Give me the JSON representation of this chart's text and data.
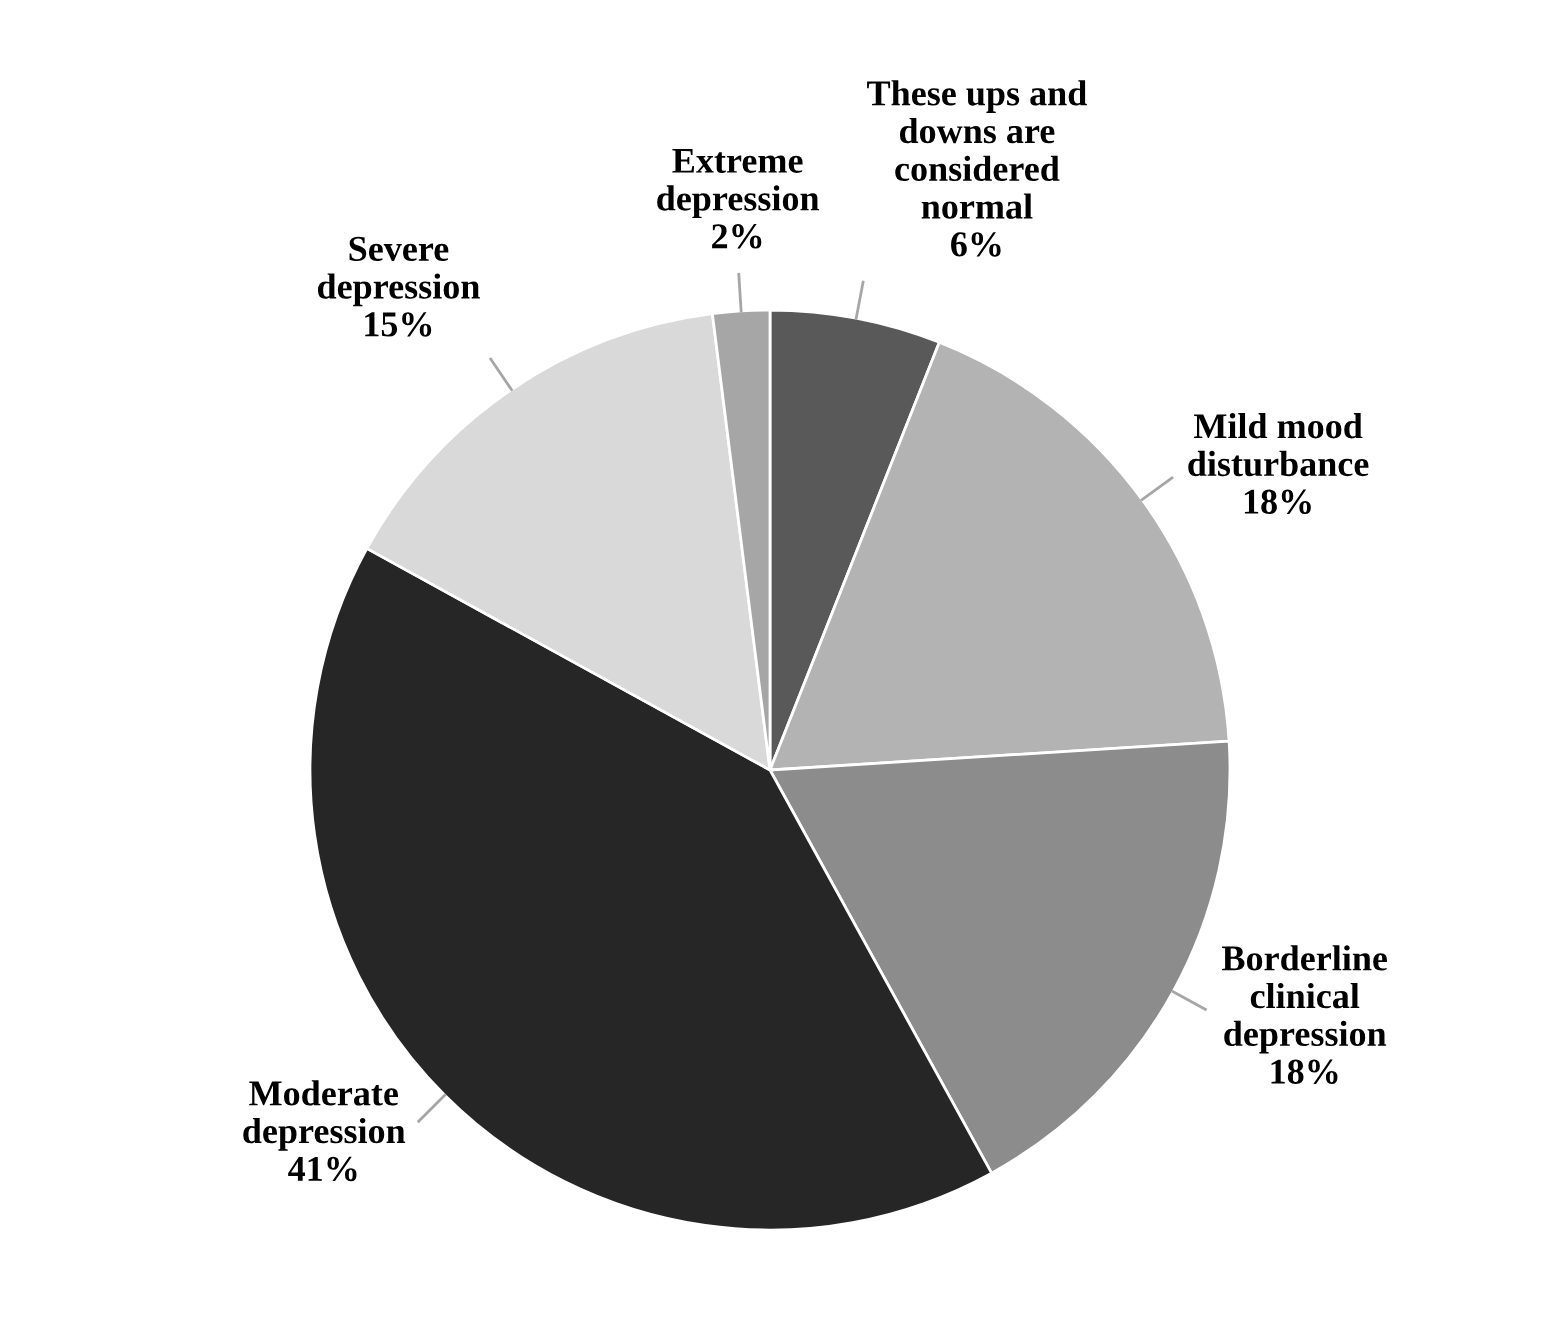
{
  "chart_data": {
    "type": "pie",
    "categories": [
      "These ups and\ndowns are\nconsidered\nnormal",
      "Mild mood\ndisturbance",
      "Borderline\nclinical\ndepression",
      "Moderate\ndepression",
      "Severe\ndepression",
      "Extreme\ndepression"
    ],
    "values": [
      6,
      18,
      18,
      41,
      15,
      2
    ],
    "colors": [
      "#595959",
      "#b3b3b3",
      "#8c8c8c",
      "#262626",
      "#d9d9d9",
      "#a6a6a6"
    ],
    "value_labels": [
      "6%",
      "18%",
      "18%",
      "41%",
      "15%",
      "2%"
    ]
  }
}
